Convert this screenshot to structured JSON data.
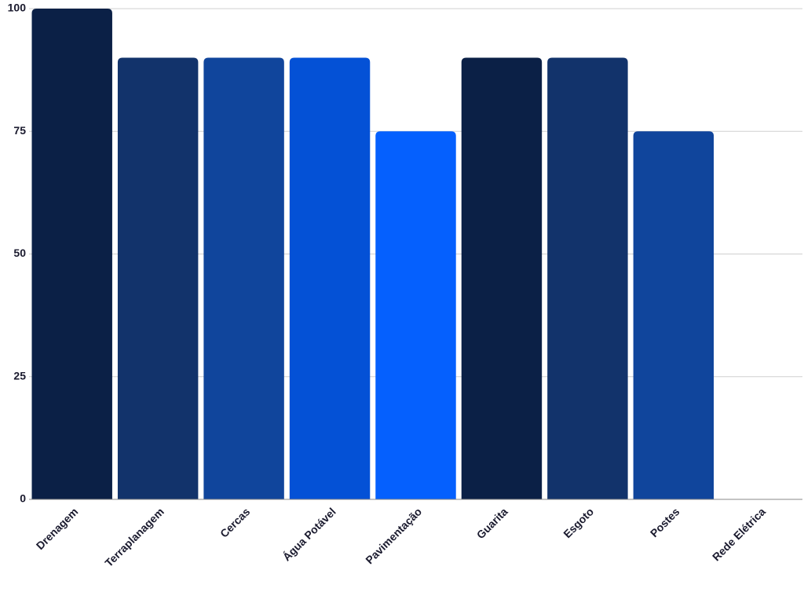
{
  "chart_data": {
    "type": "bar",
    "categories": [
      "Drenagem",
      "Terraplanagem",
      "Cercas",
      "Água Potável",
      "Pavimentação",
      "Guarita",
      "Esgoto",
      "Postes",
      "Rede Elétrica"
    ],
    "values": [
      100,
      90,
      90,
      90,
      75,
      90,
      90,
      75,
      0
    ],
    "colors": [
      "#0b2046",
      "#12336b",
      "#10459c",
      "#0451d6",
      "#0560fe",
      "#0b2046",
      "#12336b",
      "#10459c",
      "#0451d6"
    ],
    "ylim": [
      0,
      100
    ],
    "yticks": [
      0,
      25,
      50,
      75,
      100
    ],
    "grid": true
  }
}
